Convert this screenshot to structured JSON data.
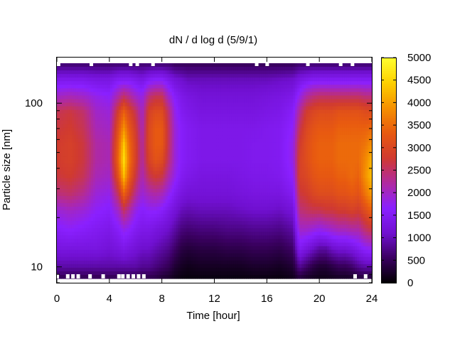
{
  "chart_data": {
    "type": "heatmap",
    "title": "dN / d log d (5/9/1)",
    "xlabel": "Time [hour]",
    "ylabel": "Particle size [nm]",
    "xlim": [
      0,
      24
    ],
    "x_ticks": [
      0,
      4,
      8,
      12,
      16,
      20,
      24
    ],
    "ylim": [
      8,
      190
    ],
    "y_scale": "log",
    "y_ticks": [
      10,
      100
    ],
    "colorbar": {
      "range": [
        0,
        5000
      ],
      "ticks": [
        0,
        500,
        1000,
        1500,
        2000,
        2500,
        3000,
        3500,
        4000,
        4500,
        5000
      ],
      "colormap": [
        "#000000",
        "#3a0060",
        "#7010d0",
        "#8a20ff",
        "#b02aa0",
        "#d03a30",
        "#e85a10",
        "#f59000",
        "#fdd000",
        "#ffff30"
      ]
    },
    "time_hours": [
      0,
      1,
      2,
      3,
      4,
      4.7,
      5.1,
      5.5,
      6,
      6.5,
      7,
      7.5,
      8,
      8.5,
      9,
      9.5,
      10,
      11,
      12,
      13,
      14,
      15,
      16,
      17,
      18,
      18.5,
      19,
      19.5,
      20,
      20.5,
      21,
      21.5,
      22,
      22.5,
      23,
      23.5,
      24
    ],
    "size_bins_nm": [
      8,
      10,
      13,
      17,
      22,
      28,
      36,
      45,
      56,
      70,
      88,
      110,
      140,
      175,
      190
    ],
    "intensity_note": "values are dN/dlogd concentrations",
    "values": [
      [
        300,
        900,
        1300,
        1600,
        1900,
        2400,
        2700,
        2800,
        2800,
        2700,
        2600,
        2000,
        1400,
        600,
        100
      ],
      [
        300,
        900,
        1300,
        1700,
        2000,
        2500,
        2800,
        2900,
        2900,
        2800,
        2700,
        2100,
        1400,
        600,
        100
      ],
      [
        300,
        900,
        1300,
        1600,
        1900,
        2300,
        2600,
        2700,
        2700,
        2600,
        2500,
        2000,
        1400,
        600,
        100
      ],
      [
        300,
        900,
        1300,
        1500,
        1700,
        1900,
        2100,
        2200,
        2200,
        2100,
        2000,
        1800,
        1300,
        600,
        100
      ],
      [
        300,
        900,
        1200,
        1400,
        1600,
        1800,
        2000,
        2100,
        2100,
        2000,
        1900,
        1700,
        1300,
        600,
        100
      ],
      [
        300,
        900,
        1300,
        1600,
        2000,
        2600,
        3200,
        3500,
        3400,
        3200,
        2900,
        2200,
        1500,
        600,
        100
      ],
      [
        300,
        900,
        1400,
        1800,
        2500,
        3400,
        4300,
        4600,
        4400,
        3900,
        3400,
        2500,
        1500,
        600,
        100
      ],
      [
        300,
        900,
        1300,
        1700,
        2200,
        2900,
        3400,
        3600,
        3500,
        3300,
        3000,
        2300,
        1500,
        600,
        100
      ],
      [
        300,
        900,
        1200,
        1500,
        1800,
        2300,
        2700,
        2900,
        2900,
        2800,
        2600,
        2000,
        1400,
        600,
        100
      ],
      [
        300,
        800,
        1100,
        1400,
        1600,
        1900,
        2100,
        2200,
        2200,
        2100,
        2000,
        1800,
        1300,
        600,
        100
      ],
      [
        300,
        800,
        1100,
        1400,
        1700,
        2100,
        2600,
        2900,
        3000,
        3000,
        2900,
        2400,
        1500,
        600,
        100
      ],
      [
        300,
        700,
        1000,
        1300,
        1700,
        2200,
        2800,
        3200,
        3300,
        3300,
        3100,
        2600,
        1600,
        600,
        100
      ],
      [
        200,
        600,
        900,
        1200,
        1600,
        2100,
        2700,
        3100,
        3300,
        3300,
        3100,
        2600,
        1600,
        600,
        100
      ],
      [
        150,
        500,
        800,
        1100,
        1400,
        1800,
        2200,
        2500,
        2600,
        2600,
        2500,
        2000,
        1400,
        600,
        100
      ],
      [
        100,
        300,
        600,
        900,
        1200,
        1500,
        1800,
        1900,
        1900,
        1900,
        1800,
        1600,
        1200,
        500,
        100
      ],
      [
        50,
        200,
        400,
        700,
        1000,
        1300,
        1500,
        1600,
        1600,
        1600,
        1500,
        1400,
        1100,
        500,
        100
      ],
      [
        50,
        150,
        350,
        650,
        950,
        1200,
        1400,
        1500,
        1500,
        1500,
        1400,
        1300,
        1000,
        500,
        100
      ],
      [
        50,
        200,
        400,
        700,
        1000,
        1200,
        1300,
        1400,
        1400,
        1400,
        1300,
        1200,
        1000,
        500,
        100
      ],
      [
        50,
        200,
        400,
        700,
        1000,
        1200,
        1300,
        1400,
        1400,
        1400,
        1300,
        1200,
        1000,
        500,
        100
      ],
      [
        50,
        200,
        450,
        750,
        1000,
        1200,
        1300,
        1400,
        1400,
        1400,
        1300,
        1200,
        1000,
        500,
        100
      ],
      [
        50,
        200,
        450,
        750,
        1050,
        1250,
        1350,
        1400,
        1400,
        1400,
        1300,
        1200,
        1000,
        500,
        100
      ],
      [
        50,
        250,
        500,
        800,
        1100,
        1300,
        1400,
        1450,
        1450,
        1400,
        1300,
        1200,
        1000,
        500,
        100
      ],
      [
        50,
        250,
        500,
        800,
        1100,
        1300,
        1400,
        1450,
        1450,
        1450,
        1350,
        1250,
        1000,
        500,
        100
      ],
      [
        50,
        200,
        450,
        750,
        1050,
        1300,
        1450,
        1500,
        1500,
        1500,
        1400,
        1300,
        1050,
        500,
        100
      ],
      [
        100,
        300,
        600,
        900,
        1200,
        1500,
        1700,
        1800,
        1800,
        1700,
        1600,
        1400,
        1100,
        500,
        100
      ],
      [
        150,
        800,
        1500,
        2000,
        2400,
        2700,
        2900,
        2900,
        2800,
        2600,
        2300,
        1800,
        1300,
        600,
        100
      ],
      [
        100,
        600,
        1300,
        2000,
        2500,
        2800,
        3000,
        3100,
        3100,
        3000,
        2800,
        2200,
        1400,
        600,
        100
      ],
      [
        100,
        400,
        1100,
        1900,
        2600,
        3000,
        3200,
        3300,
        3300,
        3200,
        3000,
        2400,
        1500,
        600,
        100
      ],
      [
        100,
        300,
        900,
        1800,
        2600,
        3100,
        3300,
        3400,
        3400,
        3300,
        3100,
        2500,
        1500,
        600,
        100
      ],
      [
        100,
        300,
        900,
        1900,
        2700,
        3100,
        3300,
        3400,
        3400,
        3300,
        3100,
        2500,
        1500,
        600,
        100
      ],
      [
        100,
        400,
        1100,
        2000,
        2700,
        3100,
        3300,
        3400,
        3400,
        3300,
        3100,
        2500,
        1500,
        600,
        100
      ],
      [
        100,
        500,
        1200,
        2100,
        2800,
        3200,
        3400,
        3500,
        3500,
        3400,
        3200,
        2500,
        1500,
        600,
        100
      ],
      [
        100,
        500,
        1200,
        2100,
        2800,
        3200,
        3400,
        3500,
        3500,
        3400,
        3200,
        2500,
        1500,
        600,
        100
      ],
      [
        100,
        600,
        1300,
        2200,
        2900,
        3300,
        3500,
        3500,
        3500,
        3400,
        3200,
        2500,
        1500,
        600,
        100
      ],
      [
        150,
        800,
        1500,
        2200,
        2800,
        3200,
        3400,
        3500,
        3500,
        3400,
        3200,
        2500,
        1500,
        600,
        100
      ],
      [
        150,
        900,
        1700,
        2500,
        3100,
        3600,
        3900,
        3800,
        3600,
        3400,
        3100,
        2400,
        1500,
        600,
        100
      ],
      [
        150,
        900,
        1800,
        2700,
        3400,
        4000,
        4300,
        4200,
        3900,
        3500,
        3100,
        2400,
        1500,
        600,
        100
      ]
    ],
    "missing_top_columns_hours": [
      0.1,
      2.6,
      5.6,
      6.1,
      7.3,
      15.2,
      16.0,
      19.1,
      21.6,
      22.5
    ],
    "missing_bottom_columns_hours": [
      0.0,
      0.8,
      1.2,
      1.6,
      2.5,
      3.5,
      4.7,
      5.0,
      5.4,
      5.8,
      6.2,
      6.6,
      22.7,
      23.5
    ]
  }
}
